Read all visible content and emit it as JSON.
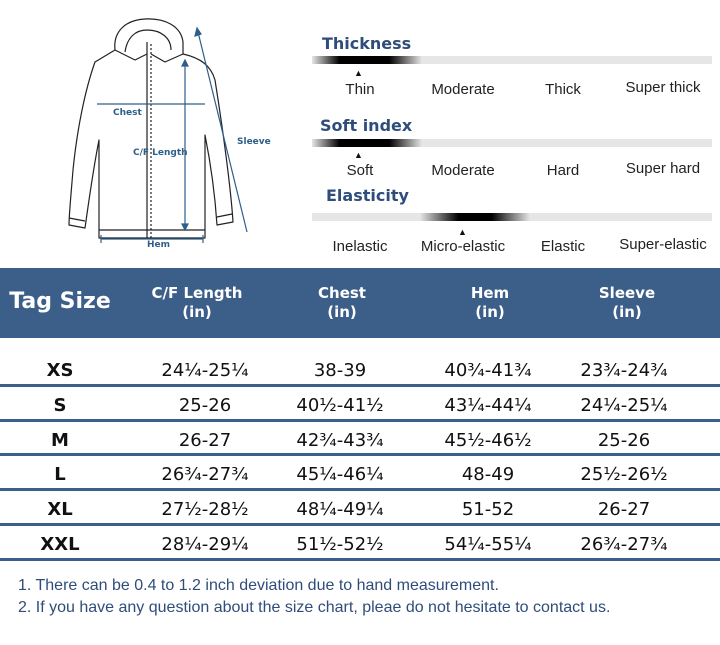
{
  "diagram": {
    "chest_label": "Chest",
    "length_label": "C/F Length",
    "sleeve_label": "Sleeve",
    "hem_label": "Hem"
  },
  "properties": {
    "thickness": {
      "title": "Thickness",
      "options": [
        "Thin",
        "Moderate",
        "Thick",
        "Super thick"
      ],
      "selected": "Thin"
    },
    "soft_index": {
      "title": "Soft index",
      "options": [
        "Soft",
        "Moderate",
        "Hard",
        "Super hard"
      ],
      "selected": "Soft"
    },
    "elasticity": {
      "title": "Elasticity",
      "options": [
        "Inelastic",
        "Micro-elastic",
        "Elastic",
        "Super-elastic"
      ],
      "selected": "Micro-elastic"
    }
  },
  "table": {
    "tag_size_header": "Tag Size",
    "columns": [
      {
        "name": "C/F Length",
        "unit": "(in)"
      },
      {
        "name": "Chest",
        "unit": "(in)"
      },
      {
        "name": "Hem",
        "unit": "(in)"
      },
      {
        "name": "Sleeve",
        "unit": "(in)"
      }
    ],
    "rows": [
      {
        "size": "XS",
        "cf_length": "24¼-25¼",
        "chest": "38-39",
        "hem": "40¾-41¾",
        "sleeve": "23¾-24¾"
      },
      {
        "size": "S",
        "cf_length": "25-26",
        "chest": "40½-41½",
        "hem": "43¼-44¼",
        "sleeve": "24¼-25¼"
      },
      {
        "size": "M",
        "cf_length": "26-27",
        "chest": "42¾-43¾",
        "hem": "45½-46½",
        "sleeve": "25-26"
      },
      {
        "size": "L",
        "cf_length": "26¾-27¾",
        "chest": "45¼-46¼",
        "hem": "48-49",
        "sleeve": "25½-26½"
      },
      {
        "size": "XL",
        "cf_length": "27½-28½",
        "chest": "48¼-49¼",
        "hem": "51-52",
        "sleeve": "26-27"
      },
      {
        "size": "XXL",
        "cf_length": "28¼-29¼",
        "chest": "51½-52½",
        "hem": "54¼-55¼",
        "sleeve": "26¾-27¾"
      }
    ]
  },
  "notes": [
    "1. There can be 0.4 to 1.2 inch deviation due to hand measurement.",
    "2. If you have any question about the size chart, pleae do not hesitate to contact us."
  ],
  "colors": {
    "header_bg": "#3c5f8a",
    "title_text": "#2f4d7a",
    "diagram_line": "#2e5f8a"
  }
}
